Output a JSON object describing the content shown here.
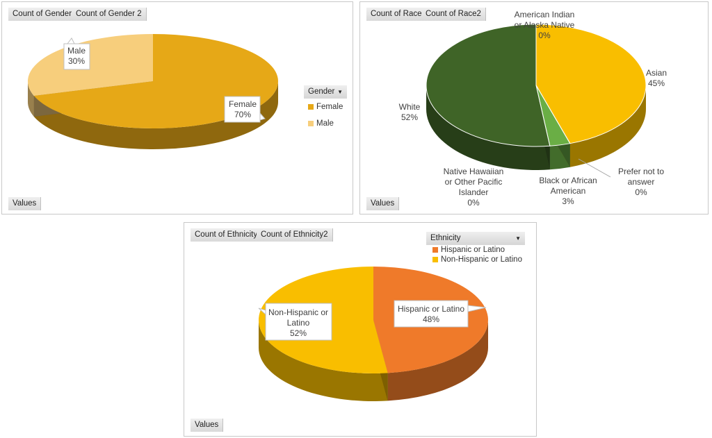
{
  "chart_data": [
    {
      "type": "pie",
      "field_buttons": [
        "Count of Gender",
        "Count of Gender 2"
      ],
      "values_button": "Values",
      "legend_title": "Gender",
      "legend_placement": "right",
      "categories": [
        "Female",
        "Male"
      ],
      "values": [
        70,
        30
      ],
      "labels": [
        "70%",
        "30%"
      ],
      "colors": [
        "#E6A817",
        "#F7CE7C"
      ]
    },
    {
      "type": "pie",
      "field_buttons": [
        "Count of Race",
        "Count of Race2"
      ],
      "values_button": "Values",
      "categories": [
        "American Indian or Alaska Native",
        "Asian",
        "Prefer not to answer",
        "Black or African American",
        "Native Hawaiian or Other Pacific Islander",
        "White"
      ],
      "label_lines": [
        [
          "American Indian",
          "or Alaska Native"
        ],
        [
          "Asian"
        ],
        [
          "Prefer not to",
          "answer"
        ],
        [
          "Black or African",
          "American"
        ],
        [
          "Native Hawaiian",
          "or Other Pacific",
          "Islander"
        ],
        [
          "White"
        ]
      ],
      "values": [
        0,
        45,
        0,
        3,
        0,
        52
      ],
      "labels": [
        "0%",
        "45%",
        "0%",
        "3%",
        "0%",
        "52%"
      ],
      "colors": [
        "#5B9BD5",
        "#F9BE00",
        "#A5A5A5",
        "#6AAE45",
        "#2E75B6",
        "#3F6427"
      ]
    },
    {
      "type": "pie",
      "field_buttons": [
        "Count of Ethnicity",
        "Count of Ethnicity2"
      ],
      "values_button": "Values",
      "legend_title": "Ethnicity",
      "legend_placement": "top-right",
      "categories": [
        "Hispanic or Latino",
        "Non-Hispanic or Latino"
      ],
      "label_lines": [
        [
          "Hispanic or Latino"
        ],
        [
          "Non-Hispanic or",
          "Latino"
        ]
      ],
      "values": [
        48,
        52
      ],
      "labels": [
        "48%",
        "52%"
      ],
      "colors": [
        "#EF7A2A",
        "#F9BE00"
      ]
    }
  ]
}
